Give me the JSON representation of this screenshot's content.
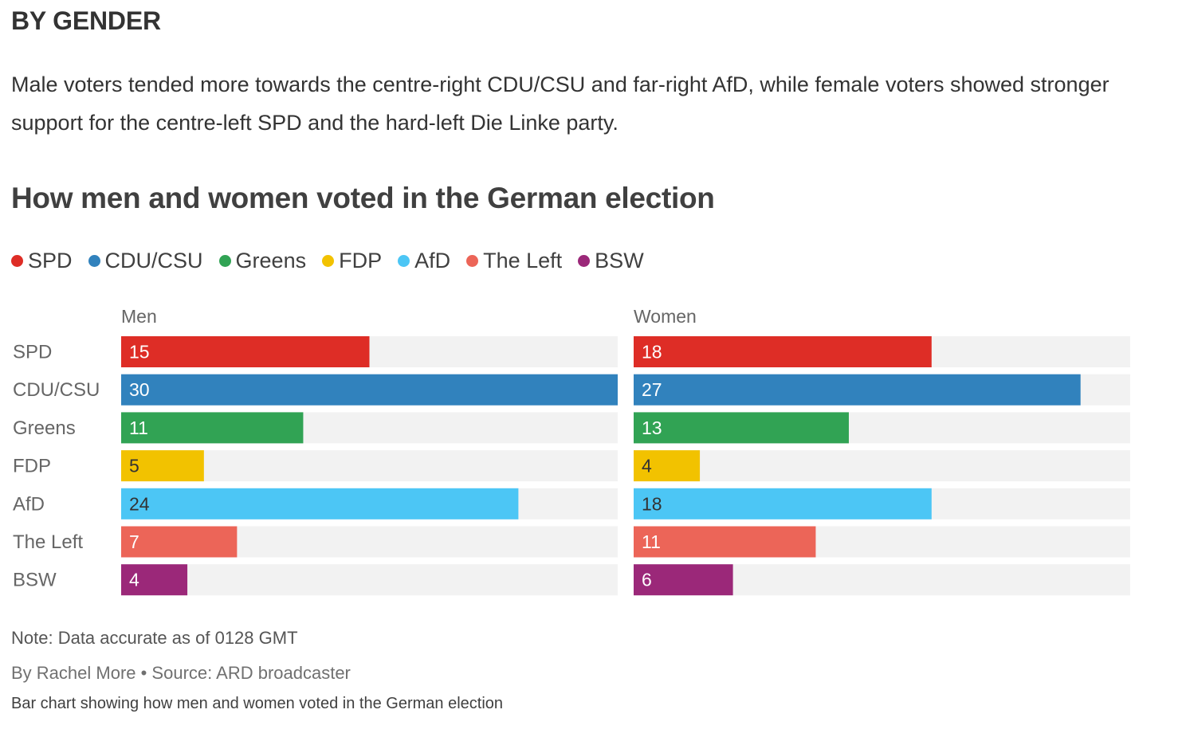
{
  "section_label": "BY GENDER",
  "intro": "Male voters tended more towards the centre-right CDU/CSU and far-right AfD, while female voters showed stronger support for the centre-left SPD and the hard-left Die Linke party.",
  "note": "Note: Data accurate as of 0128 GMT",
  "byline": "By Rachel More • Source: ARD broadcaster",
  "alt_text": "Bar chart showing how men and women voted in the German election",
  "colors": {
    "SPD": "#de2d26",
    "CDU/CSU": "#3182bd",
    "Greens": "#31a354",
    "FDP": "#f2c200",
    "AfD": "#4cc6f5",
    "The Left": "#ec6558",
    "BSW": "#9b2879",
    "track": "#f2f2f2"
  },
  "chart_data": {
    "type": "bar",
    "orientation": "horizontal",
    "title": "How men and women voted in the German election",
    "categories": [
      "SPD",
      "CDU/CSU",
      "Greens",
      "FDP",
      "AfD",
      "The Left",
      "BSW"
    ],
    "legend": [
      "SPD",
      "CDU/CSU",
      "Greens",
      "FDP",
      "AfD",
      "The Left",
      "BSW"
    ],
    "legend_position": "top-left",
    "xlim": [
      0,
      30
    ],
    "grid": false,
    "panels": [
      {
        "name": "Men",
        "values": [
          15,
          30,
          11,
          5,
          24,
          7,
          4
        ]
      },
      {
        "name": "Women",
        "values": [
          18,
          27,
          13,
          4,
          18,
          11,
          6
        ]
      }
    ]
  }
}
